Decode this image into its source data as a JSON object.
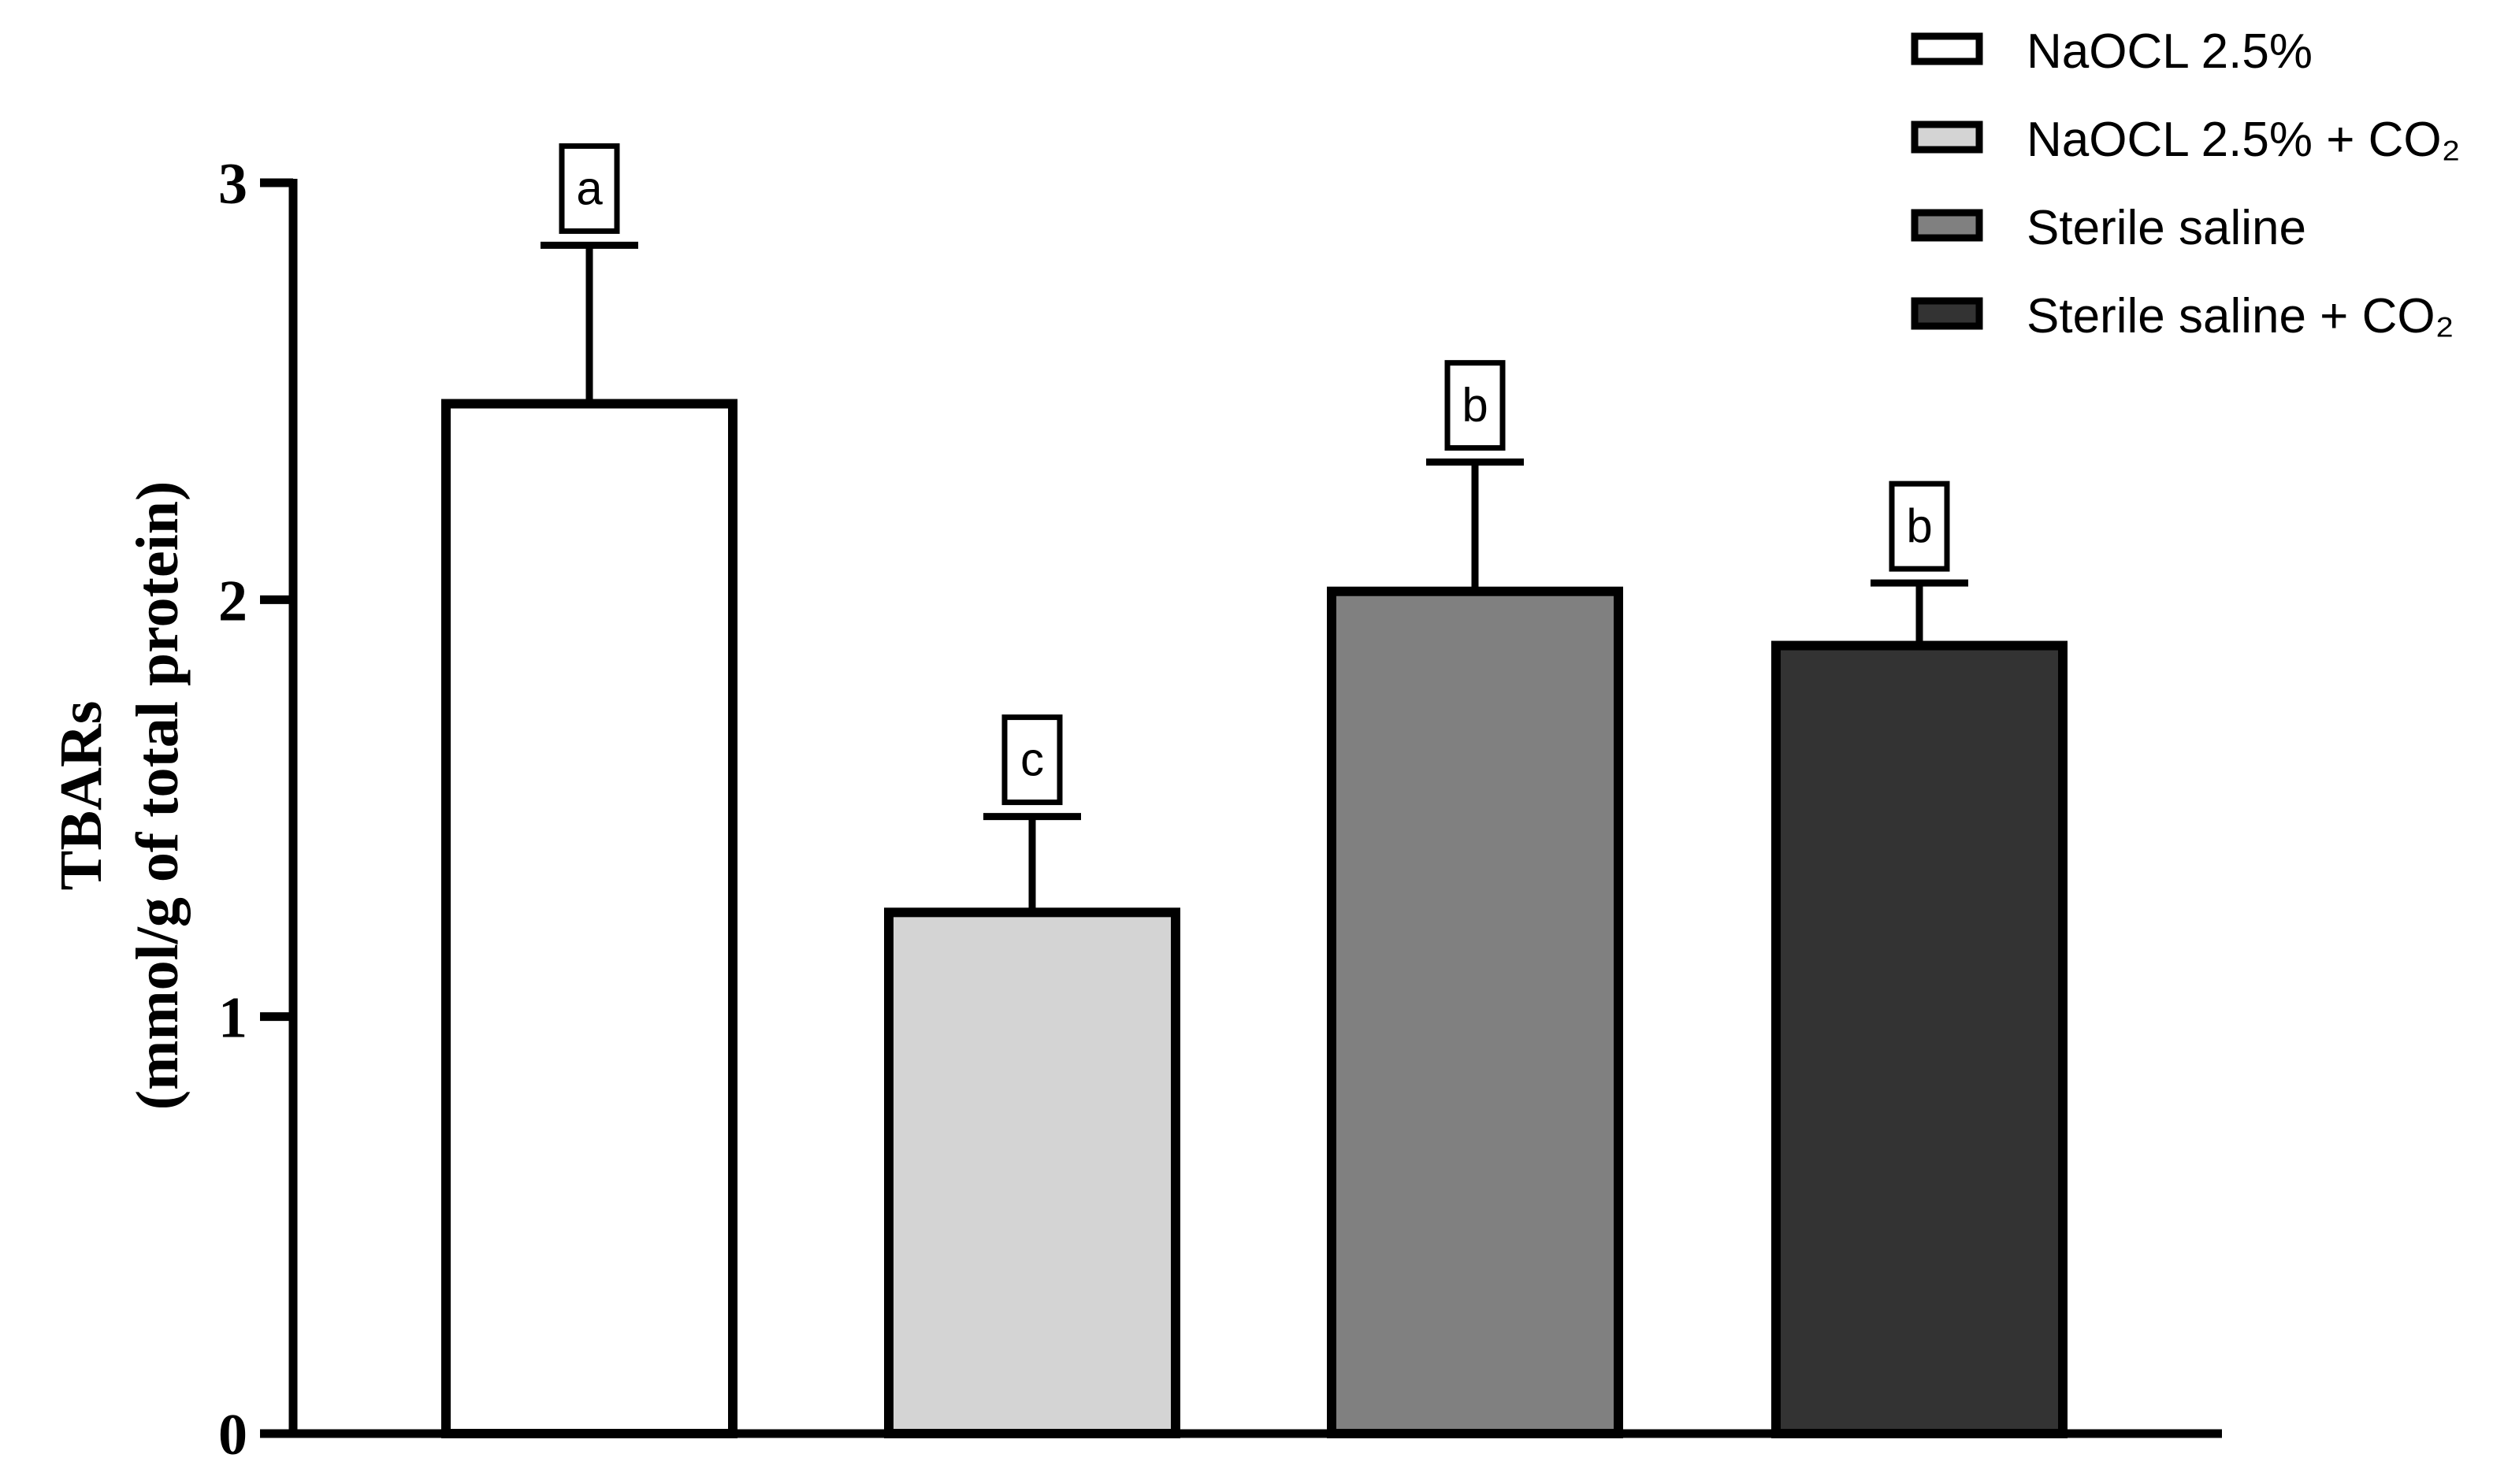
{
  "chart_data": {
    "type": "bar",
    "ylabel_line1": "TBARs",
    "ylabel_line2": "(mmol/g of total protein)",
    "xlabel": "",
    "ylim": [
      0,
      3
    ],
    "yticks": [
      "0",
      "1",
      "2",
      "3"
    ],
    "legend_position": "top-right",
    "series": [
      {
        "name": "NaOCL 2.5%",
        "value": 2.47,
        "error": 0.38,
        "letter": "a",
        "color": "#ffffff"
      },
      {
        "name": "NaOCL 2.5% + CO₂",
        "value": 1.25,
        "error": 0.23,
        "letter": "c",
        "color": "#d4d4d4"
      },
      {
        "name": "Sterile saline",
        "value": 2.02,
        "error": 0.31,
        "letter": "b",
        "color": "#808080"
      },
      {
        "name": "Sterile saline + CO₂",
        "value": 1.89,
        "error": 0.15,
        "letter": "b",
        "color": "#333333"
      }
    ]
  }
}
